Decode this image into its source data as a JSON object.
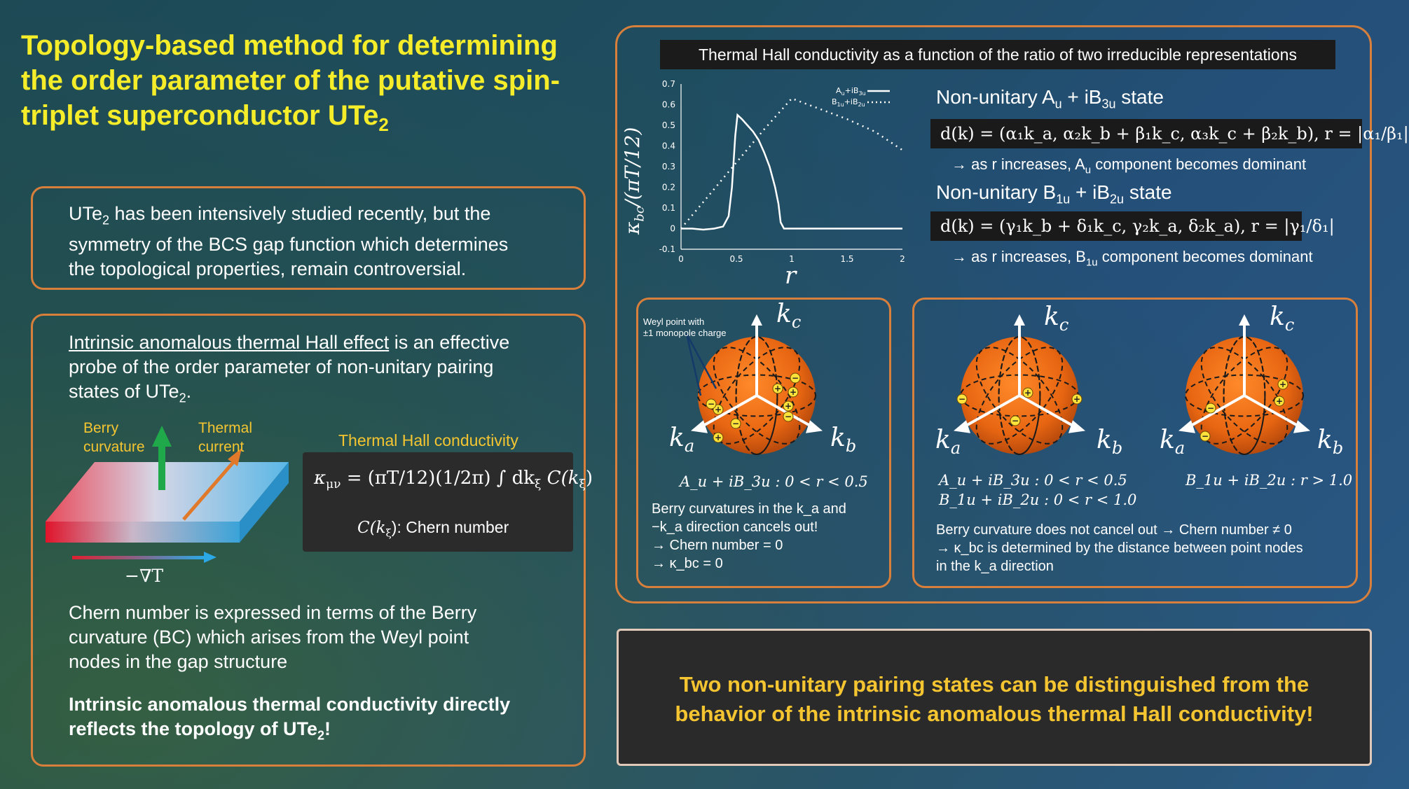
{
  "title": "Topology-based method for determining the order parameter of the putative spin-triplet superconductor UTe",
  "title_sub": "2",
  "box1": {
    "line1a": "UTe",
    "line1sub": "2",
    "line1b": " has been intensively studied recently, but the",
    "line2": "symmetry of the BCS gap function which determines",
    "line3": "the topological properties, remain controversial."
  },
  "box2": {
    "p1_u": "Intrinsic anomalous thermal Hall effect",
    "p1_rest": " is an effective",
    "p1_l2": "probe of the order parameter of non-unitary pairing",
    "p1_l3a": "states of UTe",
    "p1_l3sub": "2",
    "p1_l3b": ".",
    "berry_l1": "Berry",
    "berry_l2": "curvature",
    "thermal_l1": "Thermal",
    "thermal_l2": "current",
    "grad": "−∇T",
    "thc_label": "Thermal Hall conductivity",
    "formula": "κ",
    "formula_sub": "μν",
    "formula_rest": " = (πT/12)(1/2π) ∫ dk",
    "formula_xi": "ξ",
    "formula_c": " C(k",
    "formula_end": ")",
    "chern_lbl_a": "C(k",
    "chern_lbl_xi": "ξ",
    "chern_lbl_b": "): Chern number",
    "p2_l1": "Chern number is expressed in terms of the Berry",
    "p2_l2": "curvature (BC) which arises from the Weyl point",
    "p2_l3": "nodes in the gap structure",
    "p3_l1": "Intrinsic anomalous thermal conductivity directly",
    "p3_l2a": "reflects the topology of UTe",
    "p3_l2sub": "2",
    "p3_l2b": "!"
  },
  "right": {
    "plot_title": "Thermal Hall conductivity as a function of the ratio of two irreducible representations",
    "state1": "Non-unitary A",
    "state1_s1": "u",
    "state1_m": " + iB",
    "state1_s2": "3u",
    "state1_end": " state",
    "eq1": "d(k) = (α₁k_a, α₂k_b + β₁k_c, α₃k_c + β₂k_b), r = |α₁/β₁|",
    "arrow1a": "→ as r increases, A",
    "arrow1sub": "u",
    "arrow1b": " component becomes dominant",
    "state2": "Non-unitary B",
    "state2_s1": "1u",
    "state2_m": " + iB",
    "state2_s2": "2u",
    "state2_end": " state",
    "eq2": "d(k) = (γ₁k_b + δ₁k_c, γ₂k_a, δ₂k_a), r = |γ₁/δ₁|",
    "arrow2a": "→ as r increases, B",
    "arrow2sub": "1u",
    "arrow2b": " component becomes dominant"
  },
  "spheres": {
    "weyl_l1": "Weyl point with",
    "weyl_l2": "±1 monopole charge",
    "kc": "k",
    "kc_sub": "c",
    "ka": "k",
    "ka_sub": "a",
    "kb": "k",
    "kb_sub": "b",
    "cap1": "A_u + iB_3u : 0 < r < 0.5",
    "cap2a": "A_u + iB_3u : 0 < r < 0.5",
    "cap2b": "B_1u + iB_2u : 0 < r < 1.0",
    "cap3": "B_1u + iB_2u : r > 1.0",
    "left_l1": "Berry curvatures in the k_a and",
    "left_l2": "−k_a direction cancels out!",
    "left_l3": "→ Chern number = 0",
    "left_l4": "→  κ_bc = 0",
    "right_l1": "Berry curvature does not cancel out → Chern number ≠ 0",
    "right_l2": "→ κ_bc is determined by the distance between point nodes",
    "right_l3": "in the k_a direction"
  },
  "conclusion_l1": "Two non-unitary pairing states can be distinguished from the",
  "conclusion_l2": "behavior of the intrinsic anomalous thermal Hall conductivity!",
  "chart_data": {
    "type": "line",
    "xlabel": "r",
    "ylabel": "κ_bc/(πT/12)",
    "xlim": [
      0,
      2
    ],
    "ylim": [
      -0.1,
      0.7
    ],
    "xticks": [
      "0",
      "0.5",
      "1",
      "1.5",
      "2"
    ],
    "yticks": [
      "-0.1",
      "0",
      "0.1",
      "0.2",
      "0.3",
      "0.4",
      "0.5",
      "0.6",
      "0.7"
    ],
    "legend_position": "top-right",
    "series": [
      {
        "name": "A_u+iB_3u",
        "style": "solid",
        "x": [
          0,
          0.1,
          0.2,
          0.3,
          0.38,
          0.43,
          0.46,
          0.49,
          0.51,
          0.55,
          0.6,
          0.65,
          0.7,
          0.75,
          0.8,
          0.85,
          0.88,
          0.9,
          0.93,
          1.0,
          1.5,
          2.0
        ],
        "y": [
          0.0,
          0.0,
          -0.005,
          0.0,
          0.01,
          0.06,
          0.2,
          0.45,
          0.55,
          0.53,
          0.5,
          0.47,
          0.43,
          0.37,
          0.3,
          0.2,
          0.12,
          0.03,
          0.0,
          0.0,
          0.0,
          0.0
        ]
      },
      {
        "name": "B_1u+iB_2u",
        "style": "dotted",
        "x": [
          0,
          0.25,
          0.5,
          0.75,
          1.0,
          1.25,
          1.5,
          1.75,
          2.0
        ],
        "y": [
          0.0,
          0.16,
          0.32,
          0.48,
          0.63,
          0.58,
          0.53,
          0.47,
          0.38
        ]
      }
    ]
  }
}
